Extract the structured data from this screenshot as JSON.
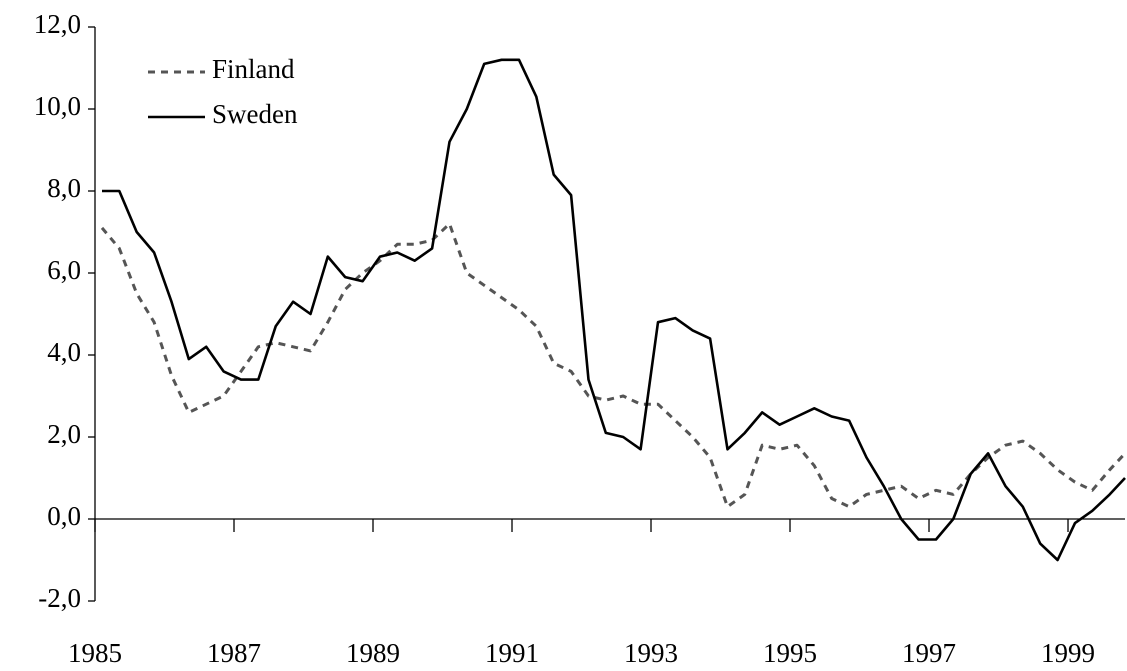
{
  "chart_data": {
    "type": "line",
    "x": [
      1985.1,
      1985.35,
      1985.6,
      1985.85,
      1986.1,
      1986.35,
      1986.6,
      1986.85,
      1987.1,
      1987.35,
      1987.6,
      1987.85,
      1988.1,
      1988.35,
      1988.6,
      1988.85,
      1989.1,
      1989.35,
      1989.6,
      1989.85,
      1990.1,
      1990.35,
      1990.6,
      1990.85,
      1991.1,
      1991.35,
      1991.6,
      1991.85,
      1992.1,
      1992.35,
      1992.6,
      1992.85,
      1993.1,
      1993.35,
      1993.6,
      1993.85,
      1994.1,
      1994.35,
      1994.6,
      1994.85,
      1995.1,
      1995.35,
      1995.6,
      1995.85,
      1996.1,
      1996.35,
      1996.6,
      1996.85,
      1997.1,
      1997.35,
      1997.6,
      1997.85,
      1998.1,
      1998.35,
      1998.6,
      1998.85,
      1999.1,
      1999.35,
      1999.6,
      1999.82
    ],
    "series": [
      {
        "name": "Finland",
        "color": "#555555",
        "dashed": true,
        "values": [
          7.1,
          6.6,
          5.5,
          4.8,
          3.5,
          2.6,
          2.8,
          3.0,
          3.6,
          4.2,
          4.3,
          4.2,
          4.1,
          4.8,
          5.6,
          6.0,
          6.3,
          6.7,
          6.7,
          6.8,
          7.2,
          6.0,
          5.7,
          5.4,
          5.1,
          4.7,
          3.8,
          3.6,
          3.0,
          2.9,
          3.0,
          2.8,
          2.8,
          2.4,
          2.0,
          1.5,
          0.3,
          0.6,
          1.8,
          1.7,
          1.8,
          1.3,
          0.5,
          0.3,
          0.6,
          0.7,
          0.8,
          0.5,
          0.7,
          0.6,
          1.1,
          1.5,
          1.8,
          1.9,
          1.6,
          1.2,
          0.9,
          0.7,
          1.2,
          1.6
        ]
      },
      {
        "name": "Sweden",
        "color": "#000000",
        "dashed": false,
        "values": [
          8.0,
          8.0,
          7.0,
          6.5,
          5.3,
          3.9,
          4.2,
          3.6,
          3.4,
          3.4,
          4.7,
          5.3,
          5.0,
          6.4,
          5.9,
          5.8,
          6.4,
          6.5,
          6.3,
          6.6,
          9.2,
          10.0,
          11.1,
          11.2,
          11.2,
          10.3,
          8.4,
          7.9,
          3.4,
          2.1,
          2.0,
          1.7,
          4.8,
          4.9,
          4.6,
          4.4,
          1.7,
          2.1,
          2.6,
          2.3,
          2.5,
          2.7,
          2.5,
          2.4,
          1.5,
          0.8,
          0.0,
          -0.5,
          -0.5,
          0.0,
          1.1,
          1.6,
          0.8,
          0.3,
          -0.6,
          -1.0,
          -0.1,
          0.2,
          0.6,
          1.0
        ]
      }
    ],
    "xlim": [
      1985,
      1999.82
    ],
    "xticks": [
      1985,
      1987,
      1989,
      1991,
      1993,
      1995,
      1997,
      1999
    ],
    "ylim": [
      -2,
      12
    ],
    "yticks": [
      {
        "value": -2,
        "label": "-2,0"
      },
      {
        "value": 0,
        "label": "0,0"
      },
      {
        "value": 2,
        "label": "2,0"
      },
      {
        "value": 4,
        "label": "4,0"
      },
      {
        "value": 6,
        "label": "6,0"
      },
      {
        "value": 8,
        "label": "8,0"
      },
      {
        "value": 10,
        "label": "10,0"
      },
      {
        "value": 12,
        "label": "12,0"
      }
    ],
    "legend": "top-left"
  }
}
